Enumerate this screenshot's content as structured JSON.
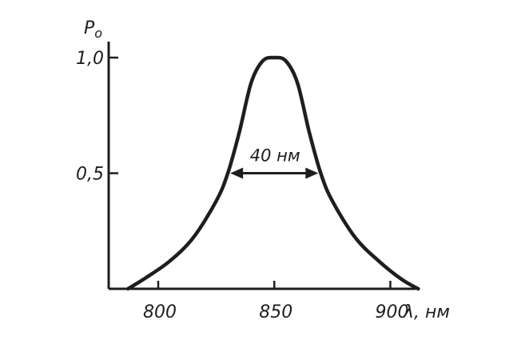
{
  "chart_data": {
    "type": "line",
    "title": "",
    "ylabel": "P",
    "ylabel_sub": "o",
    "xlabel": "λ, нм",
    "x_ticks": [
      800,
      850,
      900
    ],
    "x_tick_labels": [
      "800",
      "850",
      "900"
    ],
    "y_ticks": [
      0.5,
      1.0
    ],
    "y_tick_labels": [
      "0,5",
      "1,0"
    ],
    "xlim": [
      775,
      917
    ],
    "ylim": [
      0,
      1.0
    ],
    "center": 850,
    "fwhm_label": "40 нм",
    "fwhm_level": 0.5,
    "fwhm_range": [
      830,
      870
    ],
    "series": [
      {
        "x": [
          787,
          795,
          805,
          815,
          825,
          830,
          835,
          840,
          845,
          850,
          855,
          860,
          865,
          870,
          875,
          885,
          895,
          905,
          912
        ],
        "y": [
          0.0,
          0.05,
          0.12,
          0.22,
          0.38,
          0.5,
          0.68,
          0.89,
          0.985,
          1.0,
          0.985,
          0.89,
          0.68,
          0.5,
          0.38,
          0.22,
          0.12,
          0.04,
          0.0
        ]
      }
    ]
  }
}
